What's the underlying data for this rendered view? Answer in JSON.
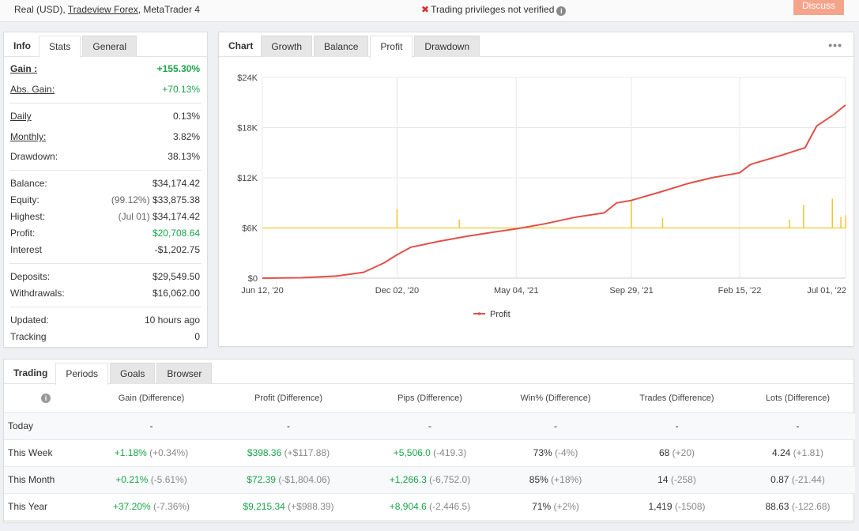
{
  "topbar": {
    "account_prefix": "Real (USD), ",
    "broker": "Tradeview Forex",
    "platform_suffix": ", MetaTrader 4",
    "status_text": "Trading privileges not verified",
    "discuss_label": "Discuss"
  },
  "stats": {
    "tabs": [
      "Info",
      "Stats",
      "General"
    ],
    "gain": {
      "label": "Gain :",
      "value": "+155.30%"
    },
    "abs_gain": {
      "label": "Abs. Gain:",
      "value": "+70.13%"
    },
    "daily": {
      "label": "Daily",
      "value": "0.13%"
    },
    "monthly": {
      "label": "Monthly:",
      "value": "3.82%"
    },
    "drawdown": {
      "label": "Drawdown:",
      "value": "38.13%"
    },
    "balance": {
      "label": "Balance:",
      "value": "$34,174.42"
    },
    "equity": {
      "label": "Equity:",
      "prefix": "(99.12%)",
      "value": "$33,875.38"
    },
    "highest": {
      "label": "Highest:",
      "prefix": "(Jul 01)",
      "value": "$34,174.42"
    },
    "profit": {
      "label": "Profit:",
      "value": "$20,708.64"
    },
    "interest": {
      "label": "Interest",
      "value": "-$1,202.75"
    },
    "deposits": {
      "label": "Deposits:",
      "value": "$29,549.50"
    },
    "withdrawals": {
      "label": "Withdrawals:",
      "value": "$16,062.00"
    },
    "updated": {
      "label": "Updated:",
      "value": "10 hours ago"
    },
    "tracking": {
      "label": "Tracking",
      "value": "0"
    }
  },
  "chart_panel": {
    "tabs": [
      "Chart",
      "Growth",
      "Balance",
      "Profit",
      "Drawdown"
    ],
    "active_tab": "Profit",
    "menu_glyph": "•••"
  },
  "chart_data": {
    "type": "line",
    "title": "",
    "xlabel": "",
    "ylabel": "",
    "y_ticks": [
      "$0",
      "$6K",
      "$12K",
      "$18K",
      "$24K"
    ],
    "x_ticks": [
      "Jun 12, '20",
      "Dec 02, '20",
      "May 04, '21",
      "Sep 29, '21",
      "Feb 15, '22",
      "Jul 01, '22"
    ],
    "ylim": [
      0,
      24000
    ],
    "grid": true,
    "legend": "bottom",
    "series": [
      {
        "name": "Profit",
        "color": "#e0504a",
        "x": [
          "Jun 12, '20",
          "Aug 01, '20",
          "Sep 15, '20",
          "Oct 20, '20",
          "Nov 15, '20",
          "Dec 02, '20",
          "Dec 20, '20",
          "Jan 25, '21",
          "Mar 01, '21",
          "Apr 05, '21",
          "May 04, '21",
          "Jun 10, '21",
          "Jul 20, '21",
          "Aug 25, '21",
          "Sep 10, '21",
          "Sep 29, '21",
          "Nov 05, '21",
          "Dec 10, '21",
          "Jan 10, '22",
          "Feb 15, '22",
          "Mar 01, '22",
          "Apr 10, '22",
          "May 10, '22",
          "May 25, '22",
          "Jun 15, '22",
          "Jul 01, '22"
        ],
        "values": [
          0,
          50,
          250,
          700,
          1800,
          2800,
          3700,
          4400,
          5000,
          5500,
          5900,
          6500,
          7300,
          7800,
          9000,
          9300,
          10300,
          11300,
          12000,
          12600,
          13600,
          14700,
          15600,
          18200,
          19500,
          20700
        ]
      },
      {
        "name": "",
        "color": "#f2c533",
        "baseline": 6000,
        "spikes": [
          {
            "x": "Dec 02, '20",
            "value": 8300
          },
          {
            "x": "Feb 20, '21",
            "value": 7000
          },
          {
            "x": "Sep 29, '21",
            "value": 9300
          },
          {
            "x": "Nov 08, '21",
            "value": 7200
          },
          {
            "x": "Apr 20, '22",
            "value": 7000
          },
          {
            "x": "May 08, '22",
            "value": 8800
          },
          {
            "x": "Jun 14, '22",
            "value": 9500
          },
          {
            "x": "Jun 25, '22",
            "value": 7300
          },
          {
            "x": "Jul 01, '22",
            "value": 7500
          }
        ]
      }
    ]
  },
  "periods": {
    "tabs": [
      "Trading",
      "Periods",
      "Goals",
      "Browser"
    ],
    "active_tab": "Periods",
    "columns": [
      "Gain (Difference)",
      "Profit (Difference)",
      "Pips (Difference)",
      "Win% (Difference)",
      "Trades (Difference)",
      "Lots (Difference)"
    ],
    "rows": [
      {
        "label": "Today",
        "cells": [
          [
            "-",
            ""
          ],
          [
            "-",
            ""
          ],
          [
            "-",
            ""
          ],
          [
            "-",
            ""
          ],
          [
            "-",
            ""
          ],
          [
            "-",
            ""
          ]
        ]
      },
      {
        "label": "This Week",
        "cells": [
          [
            "+1.18%",
            "(+0.34%)"
          ],
          [
            "$398.36",
            "(+$117.88)"
          ],
          [
            "+5,506.0",
            "(-419.3)"
          ],
          [
            "73%",
            "(-4%)"
          ],
          [
            "68",
            "(+20)"
          ],
          [
            "4.24",
            "(+1.81)"
          ]
        ]
      },
      {
        "label": "This Month",
        "cells": [
          [
            "+0.21%",
            "(-5.61%)"
          ],
          [
            "$72.39",
            "(-$1,804.06)"
          ],
          [
            "+1,266.3",
            "(-6,752.0)"
          ],
          [
            "85%",
            "(+18%)"
          ],
          [
            "14",
            "(-258)"
          ],
          [
            "0.87",
            "(-21.44)"
          ]
        ]
      },
      {
        "label": "This Year",
        "cells": [
          [
            "+37.20%",
            "(-7.36%)"
          ],
          [
            "$9,215.34",
            "(+$988.39)"
          ],
          [
            "+8,904.6",
            "(-2,446.5)"
          ],
          [
            "71%",
            "(+2%)"
          ],
          [
            "1,419",
            "(-1508)"
          ],
          [
            "88.63",
            "(-122.68)"
          ]
        ]
      }
    ]
  }
}
